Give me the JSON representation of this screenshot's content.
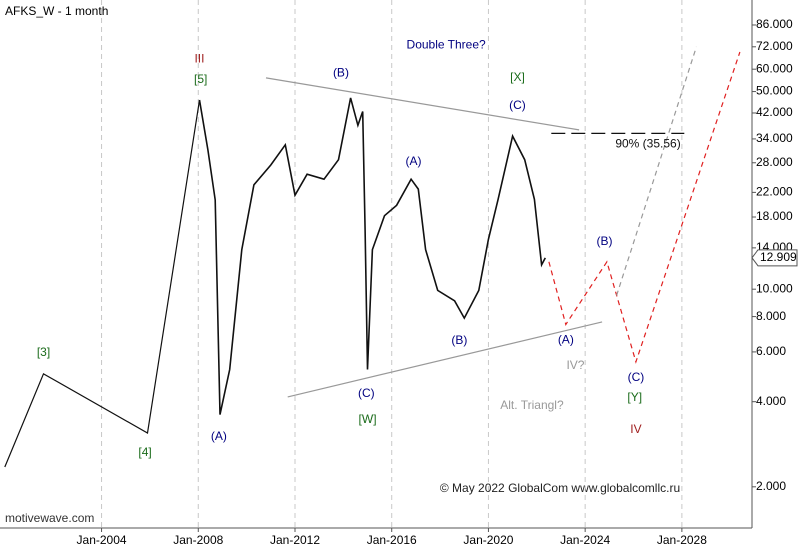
{
  "chart_data": {
    "type": "line",
    "title": "AFKS_W - 1 month",
    "watermark": "motivewave.com",
    "copyright": "© May 2022 GlobalCom www.globalcomllc.ru",
    "log_y": true,
    "grid": "x",
    "xlim": [
      1999.8,
      2030.9
    ],
    "ylim": [
      1.43,
      105.4
    ],
    "xticks": [
      {
        "value": 2004,
        "label": "Jan-2004"
      },
      {
        "value": 2008,
        "label": "Jan-2008"
      },
      {
        "value": 2012,
        "label": "Jan-2012"
      },
      {
        "value": 2016,
        "label": "Jan-2016"
      },
      {
        "value": 2020,
        "label": "Jan-2020"
      },
      {
        "value": 2024,
        "label": "Jan-2024"
      },
      {
        "value": 2028,
        "label": "Jan-2028"
      }
    ],
    "yticks": [
      {
        "value": 2,
        "label": "2.000"
      },
      {
        "value": 4,
        "label": "4.000"
      },
      {
        "value": 6,
        "label": "6.000"
      },
      {
        "value": 8,
        "label": "8.000"
      },
      {
        "value": 10,
        "label": "10.000"
      },
      {
        "value": 14,
        "label": "14.000"
      },
      {
        "value": 18,
        "label": "18.000"
      },
      {
        "value": 22,
        "label": "22.000"
      },
      {
        "value": 28,
        "label": "28.000"
      },
      {
        "value": 34,
        "label": "34.000"
      },
      {
        "value": 42,
        "label": "42.000"
      },
      {
        "value": 50,
        "label": "50.000"
      },
      {
        "value": 60,
        "label": "60.000"
      },
      {
        "value": 72,
        "label": "72.000"
      },
      {
        "value": 86,
        "label": "86.000"
      }
    ],
    "last_price": {
      "value": 12.909,
      "label": "12.909"
    },
    "series": [
      {
        "color": "#111111",
        "dash": false,
        "x": [
          2000.0,
          2001.6,
          2005.9,
          2008.05
        ],
        "values": [
          2.35,
          5.02,
          3.1,
          46.7
        ]
      },
      {
        "color": "#111111",
        "dash": false,
        "x": [
          2008.05,
          2008.4,
          2008.7,
          2008.9,
          2009.3,
          2009.8,
          2010.3,
          2011.0,
          2011.6,
          2012.0,
          2012.5,
          2013.2,
          2013.8,
          2014.3,
          2014.6,
          2014.8,
          2014.9,
          2015.0,
          2015.2,
          2015.7,
          2016.2,
          2016.8,
          2017.1,
          2017.4,
          2017.9,
          2018.6,
          2019.0,
          2019.6,
          2020.0,
          2020.4,
          2021.0,
          2021.5,
          2021.9,
          2022.2,
          2022.35
        ],
        "values": [
          46.7,
          31.1,
          20.7,
          3.6,
          5.2,
          13.8,
          23.4,
          27.5,
          32.4,
          21.5,
          25.5,
          24.5,
          28.7,
          47.5,
          38.0,
          42.5,
          16.2,
          5.2,
          13.8,
          18.2,
          19.8,
          24.5,
          22.6,
          13.8,
          9.9,
          9.1,
          7.9,
          9.9,
          15.0,
          20.8,
          34.8,
          28.7,
          20.8,
          12.2,
          12.9
        ]
      },
      {
        "color": "#e02020",
        "dash": true,
        "x": [
          2022.5,
          2023.2,
          2024.9,
          2026.1,
          2030.4
        ],
        "values": [
          12.5,
          7.5,
          12.5,
          5.53,
          69
        ]
      },
      {
        "color": "#999999",
        "dash": true,
        "x": [
          2025.3,
          2028.6
        ],
        "values": [
          9.5,
          72
        ]
      },
      {
        "color": "#999999",
        "dash": false,
        "x": [
          2010.8,
          2023.75
        ],
        "values": [
          55.9,
          36.6
        ]
      },
      {
        "color": "#999999",
        "dash": false,
        "x": [
          2011.7,
          2024.7
        ],
        "values": [
          4.16,
          7.66
        ]
      },
      {
        "color": "#111111",
        "dash": true,
        "x": [
          2022.6,
          2028.1
        ],
        "values": [
          35.56,
          35.56
        ]
      }
    ],
    "annotations": [
      {
        "text": "III",
        "x": 2008.05,
        "y": 65,
        "color": "#a02020"
      },
      {
        "text": "[5]",
        "x": 2008.1,
        "y": 55,
        "color": "#1a6b1a"
      },
      {
        "text": "(B)",
        "x": 2013.9,
        "y": 58,
        "color": "#000080"
      },
      {
        "text": "Double Three?",
        "x": 2018.25,
        "y": 73,
        "color": "#000080"
      },
      {
        "text": "[X]",
        "x": 2021.2,
        "y": 56,
        "color": "#1a6b1a"
      },
      {
        "text": "(C)",
        "x": 2021.2,
        "y": 44.5,
        "color": "#000080"
      },
      {
        "text": "90% (35.56)",
        "x": 2026.6,
        "y": 32.5,
        "color": "#111111"
      },
      {
        "text": "(A)",
        "x": 2016.9,
        "y": 28.2,
        "color": "#000080"
      },
      {
        "text": "(B)",
        "x": 2024.8,
        "y": 14.7,
        "color": "#000080"
      },
      {
        "text": "(A)",
        "x": 2023.2,
        "y": 6.6,
        "color": "#000080"
      },
      {
        "text": "IV?",
        "x": 2023.6,
        "y": 5.36,
        "color": "#999999"
      },
      {
        "text": "(C)",
        "x": 2026.1,
        "y": 4.86,
        "color": "#000080"
      },
      {
        "text": "[Y]",
        "x": 2026.05,
        "y": 4.13,
        "color": "#1a6b1a"
      },
      {
        "text": "IV",
        "x": 2026.1,
        "y": 3.18,
        "color": "#a02020"
      },
      {
        "text": "Alt. Triangl?",
        "x": 2021.8,
        "y": 3.87,
        "color": "#999999"
      },
      {
        "text": "(B)",
        "x": 2018.8,
        "y": 6.57,
        "color": "#000080"
      },
      {
        "text": "(C)",
        "x": 2014.95,
        "y": 4.26,
        "color": "#000080"
      },
      {
        "text": "[W]",
        "x": 2015.0,
        "y": 3.45,
        "color": "#1a6b1a"
      },
      {
        "text": "(A)",
        "x": 2008.85,
        "y": 3.0,
        "color": "#000080"
      },
      {
        "text": "[3]",
        "x": 2001.6,
        "y": 5.95,
        "color": "#1a6b1a"
      },
      {
        "text": "[4]",
        "x": 2005.8,
        "y": 2.64,
        "color": "#1a6b1a"
      }
    ]
  }
}
